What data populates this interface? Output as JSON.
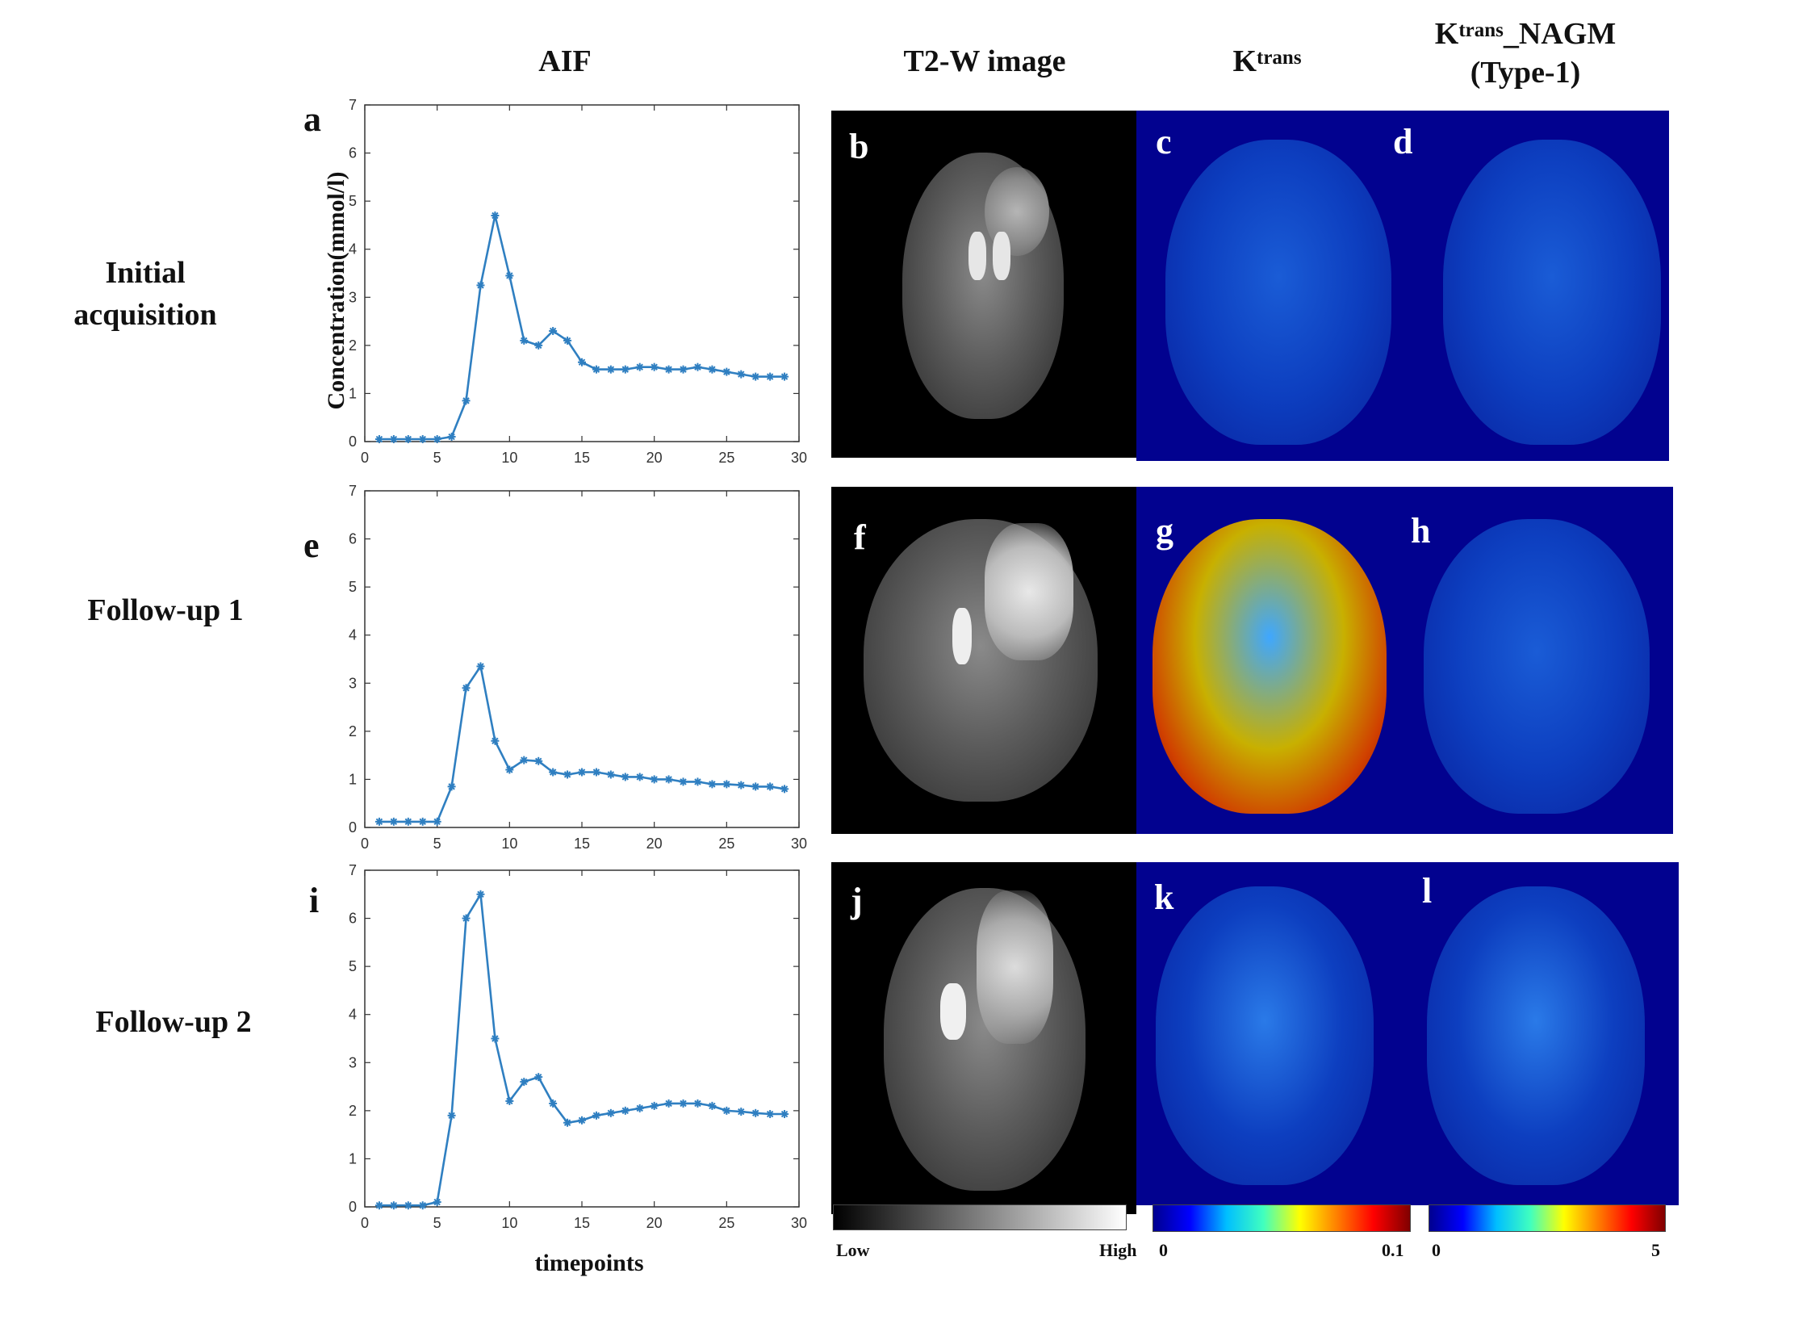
{
  "columns": {
    "aif": "AIF",
    "t2w": "T2-W image",
    "ktrans_base": "K",
    "ktrans_sup": "trans",
    "nagm_base": "K",
    "nagm_sup": "trans",
    "nagm_suffix": "_NAGM",
    "nagm_line2": "(Type-1)"
  },
  "rows": [
    {
      "label_line1": "Initial",
      "label_line2": "acquisition"
    },
    {
      "label_line1": "Follow-up 1",
      "label_line2": ""
    },
    {
      "label_line1": "Follow-up 2",
      "label_line2": ""
    }
  ],
  "panel_letters": {
    "a": "a",
    "b": "b",
    "c": "c",
    "d": "d",
    "e": "e",
    "f": "f",
    "g": "g",
    "h": "h",
    "i": "i",
    "j": "j",
    "k": "k",
    "l": "l"
  },
  "axis": {
    "ylabel": "Concentration(mmol/l)",
    "xlabel": "timepoints"
  },
  "colorbars": {
    "gray": {
      "low": "Low",
      "high": "High"
    },
    "ktrans": {
      "min": "0",
      "max": "0.1"
    },
    "nagm": {
      "min": "0",
      "max": "5"
    }
  },
  "colors": {
    "line": "#2f7fc1",
    "mri_bg": "#02028f",
    "dark_red": "#7a0000"
  },
  "chart_data": [
    {
      "type": "line",
      "panel": "a",
      "xlim": [
        0,
        30
      ],
      "ylim": [
        0,
        7
      ],
      "xticks": [
        0,
        5,
        10,
        15,
        20,
        25,
        30
      ],
      "yticks": [
        0,
        1,
        2,
        3,
        4,
        5,
        6,
        7
      ],
      "x": [
        1,
        2,
        3,
        4,
        5,
        6,
        7,
        8,
        9,
        10,
        11,
        12,
        13,
        14,
        15,
        16,
        17,
        18,
        19,
        20,
        21,
        22,
        23,
        24,
        25,
        26,
        27,
        28,
        29
      ],
      "values": [
        0.05,
        0.05,
        0.05,
        0.05,
        0.05,
        0.1,
        0.85,
        3.25,
        4.7,
        3.45,
        2.1,
        2.0,
        2.3,
        2.1,
        1.65,
        1.5,
        1.5,
        1.5,
        1.55,
        1.55,
        1.5,
        1.5,
        1.55,
        1.5,
        1.45,
        1.4,
        1.35,
        1.35,
        1.35
      ]
    },
    {
      "type": "line",
      "panel": "e",
      "xlim": [
        0,
        30
      ],
      "ylim": [
        0,
        7
      ],
      "xticks": [
        0,
        5,
        10,
        15,
        20,
        25,
        30
      ],
      "yticks": [
        0,
        1,
        2,
        3,
        4,
        5,
        6,
        7
      ],
      "x": [
        1,
        2,
        3,
        4,
        5,
        6,
        7,
        8,
        9,
        10,
        11,
        12,
        13,
        14,
        15,
        16,
        17,
        18,
        19,
        20,
        21,
        22,
        23,
        24,
        25,
        26,
        27,
        28,
        29
      ],
      "values": [
        0.12,
        0.12,
        0.12,
        0.12,
        0.12,
        0.85,
        2.9,
        3.35,
        1.8,
        1.2,
        1.4,
        1.38,
        1.15,
        1.1,
        1.15,
        1.15,
        1.1,
        1.05,
        1.05,
        1.0,
        1.0,
        0.95,
        0.95,
        0.9,
        0.9,
        0.88,
        0.85,
        0.85,
        0.8
      ]
    },
    {
      "type": "line",
      "panel": "i",
      "xlim": [
        0,
        30
      ],
      "ylim": [
        0,
        7
      ],
      "xticks": [
        0,
        5,
        10,
        15,
        20,
        25,
        30
      ],
      "yticks": [
        0,
        1,
        2,
        3,
        4,
        5,
        6,
        7
      ],
      "x": [
        1,
        2,
        3,
        4,
        5,
        6,
        7,
        8,
        9,
        10,
        11,
        12,
        13,
        14,
        15,
        16,
        17,
        18,
        19,
        20,
        21,
        22,
        23,
        24,
        25,
        26,
        27,
        28,
        29
      ],
      "values": [
        0.03,
        0.03,
        0.03,
        0.03,
        0.1,
        1.9,
        6.0,
        6.5,
        3.5,
        2.2,
        2.6,
        2.7,
        2.15,
        1.75,
        1.8,
        1.9,
        1.95,
        2.0,
        2.05,
        2.1,
        2.15,
        2.15,
        2.15,
        2.1,
        2.0,
        1.98,
        1.95,
        1.93,
        1.93
      ]
    }
  ]
}
